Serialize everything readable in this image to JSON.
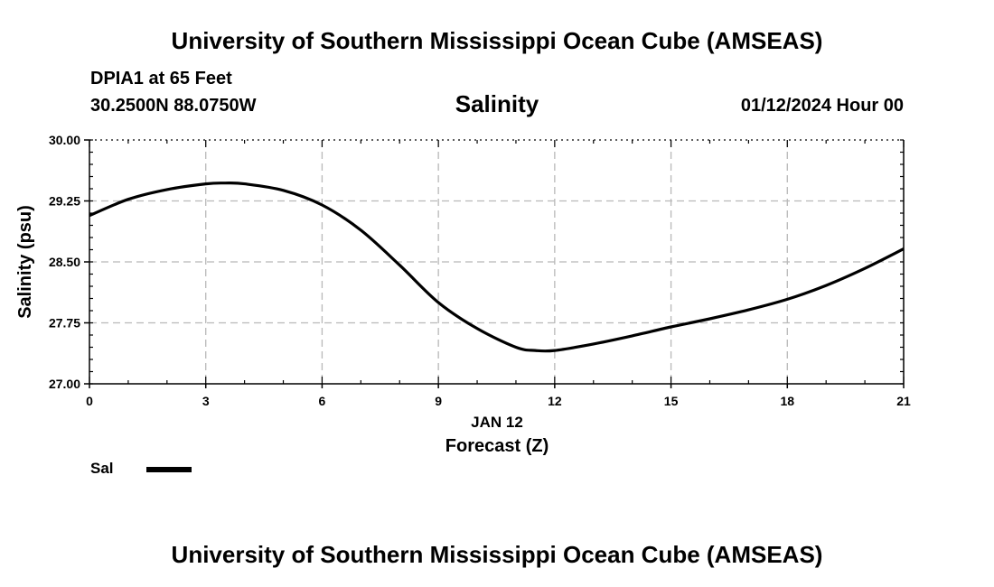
{
  "header": {
    "title": "University of Southern Mississippi Ocean Cube (AMSEAS)",
    "station": "DPIA1 at 65 Feet",
    "coords": "30.2500N  88.0750W",
    "datetime": "01/12/2024 Hour 00"
  },
  "footer": {
    "title": "University of Southern Mississippi Ocean Cube (AMSEAS)"
  },
  "chart_data": {
    "type": "line",
    "title": "Salinity",
    "xlabel": "Forecast (Z)",
    "date_label": "JAN 12",
    "ylabel": "Salinity (psu)",
    "xlim": [
      0,
      21
    ],
    "ylim": [
      27.0,
      30.0
    ],
    "xticks": [
      0,
      3,
      6,
      9,
      12,
      15,
      18,
      21
    ],
    "yticks": [
      27.0,
      27.75,
      28.5,
      29.25,
      30.0
    ],
    "ytick_labels": [
      "27.00",
      "27.75",
      "28.50",
      "29.25",
      "30.00"
    ],
    "grid": true,
    "legend_position": "bottom-left",
    "series": [
      {
        "name": "Sal",
        "color": "#000000",
        "x": [
          0,
          1,
          2,
          3,
          3.5,
          4,
          5,
          6,
          7,
          8,
          9,
          10,
          11,
          11.5,
          12,
          13,
          14,
          15,
          16,
          17,
          18,
          19,
          20,
          21
        ],
        "y": [
          29.07,
          29.27,
          29.39,
          29.46,
          29.47,
          29.46,
          29.38,
          29.2,
          28.89,
          28.46,
          28.0,
          27.68,
          27.45,
          27.41,
          27.41,
          27.49,
          27.59,
          27.7,
          27.8,
          27.91,
          28.04,
          28.21,
          28.42,
          28.66
        ]
      }
    ]
  }
}
